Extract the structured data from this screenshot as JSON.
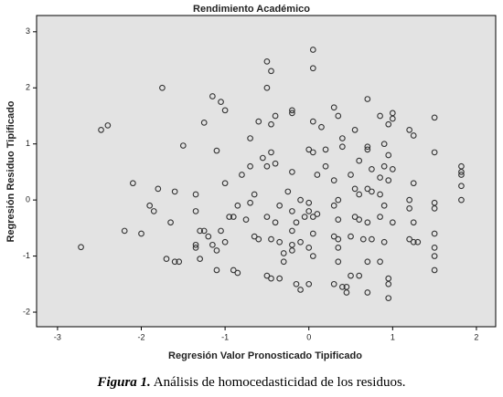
{
  "chart_data": {
    "type": "scatter",
    "title": "Rendimiento Académico",
    "x_label": "Regresión Valor Pronosticado Tipificado",
    "y_label": "Regresión Residuo Tipificado",
    "xlim": [
      -3.25,
      2.23
    ],
    "ylim": [
      -2.26,
      3.29
    ],
    "xticks": [
      -3,
      -2,
      -1,
      0,
      1,
      2
    ],
    "yticks": [
      -2,
      -1,
      0,
      1,
      2,
      3
    ],
    "series": [
      {
        "color": "#333333",
        "x": [
          -2.72,
          -2.48,
          -2.4,
          -2.1,
          -1.9,
          -1.85,
          -2.0,
          -2.2,
          -1.75,
          -1.8,
          -1.6,
          -1.65,
          -1.7,
          -1.55,
          -1.6,
          -1.5,
          -1.35,
          -1.35,
          -1.3,
          -1.35,
          -1.35,
          -1.25,
          -1.3,
          -1.25,
          -1.2,
          -1.15,
          -1.1,
          -1.15,
          -1.05,
          -1.0,
          -1.1,
          -1.05,
          -1.0,
          -0.95,
          -0.9,
          -1.0,
          -1.1,
          -0.9,
          -0.85,
          -0.85,
          -0.8,
          -0.75,
          -0.7,
          -0.65,
          -0.6,
          -0.7,
          -0.6,
          -0.7,
          -0.65,
          -0.55,
          -0.5,
          -0.5,
          -0.45,
          -0.4,
          -0.45,
          -0.4,
          -0.35,
          -0.4,
          -0.45,
          -0.35,
          -0.3,
          -0.45,
          -0.35,
          -0.5,
          -0.3,
          -0.2,
          -0.5,
          -0.45,
          -0.5,
          -0.2,
          -0.2,
          -0.25,
          -0.2,
          -0.1,
          -0.2,
          -0.15,
          -0.2,
          -0.1,
          -0.2,
          -0.15,
          -0.1,
          -0.05,
          0.0,
          0.05,
          0.05,
          0.05,
          0.0,
          0.05,
          0.1,
          0.0,
          0.05,
          0.1,
          0.05,
          0.0,
          0.05,
          0.0,
          0.15,
          0.2,
          0.2,
          0.3,
          0.4,
          0.3,
          0.35,
          0.4,
          0.4,
          0.3,
          0.35,
          0.3,
          0.35,
          0.3,
          0.35,
          0.35,
          0.35,
          0.45,
          0.45,
          0.55,
          0.6,
          0.5,
          0.55,
          0.6,
          0.55,
          0.6,
          0.5,
          0.5,
          0.6,
          0.7,
          0.7,
          0.7,
          0.75,
          0.7,
          0.75,
          0.7,
          0.75,
          0.65,
          0.7,
          0.7,
          0.85,
          0.9,
          0.9,
          0.85,
          0.95,
          0.85,
          0.9,
          0.85,
          0.9,
          0.85,
          0.95,
          0.95,
          0.95,
          1.0,
          1.0,
          1.0,
          0.95,
          0.95,
          1.0,
          1.2,
          1.25,
          1.25,
          1.2,
          1.2,
          1.25,
          1.2,
          1.3,
          1.25,
          1.5,
          1.5,
          1.5,
          1.5,
          1.5,
          1.5,
          1.5,
          1.5,
          1.82,
          1.82,
          1.82,
          1.82,
          1.82
        ],
        "y": [
          -0.84,
          1.25,
          1.33,
          0.3,
          -0.1,
          -0.2,
          -0.6,
          -0.55,
          2.0,
          0.2,
          0.15,
          -0.4,
          -1.05,
          -1.1,
          -1.1,
          0.97,
          0.1,
          -0.2,
          -0.55,
          -0.8,
          -0.85,
          -0.55,
          -1.05,
          1.38,
          -0.65,
          -0.8,
          -0.9,
          1.85,
          1.75,
          1.6,
          0.88,
          -0.55,
          -0.75,
          -0.3,
          -0.3,
          0.3,
          -1.25,
          -1.25,
          -1.3,
          -0.1,
          0.45,
          -0.35,
          0.6,
          -0.65,
          -0.7,
          1.1,
          1.4,
          -0.05,
          0.1,
          0.75,
          0.6,
          -0.3,
          1.35,
          1.5,
          0.85,
          0.65,
          -0.1,
          -0.4,
          -0.7,
          -0.75,
          -0.95,
          -1.4,
          -1.4,
          -1.35,
          -1.1,
          -0.9,
          2.47,
          2.3,
          2.0,
          1.6,
          1.55,
          0.15,
          0.5,
          0.0,
          -0.2,
          -0.4,
          -0.55,
          -0.75,
          -0.8,
          -1.5,
          -1.6,
          -0.3,
          -0.05,
          2.68,
          2.35,
          1.4,
          0.9,
          0.85,
          0.45,
          -0.2,
          -0.3,
          -0.25,
          -0.6,
          -0.85,
          -1.0,
          -1.5,
          1.3,
          0.9,
          0.6,
          -1.5,
          -1.55,
          1.65,
          1.5,
          1.1,
          0.95,
          0.35,
          0.0,
          -0.1,
          -0.35,
          -0.65,
          -0.7,
          -0.85,
          -1.1,
          -1.55,
          -1.65,
          1.25,
          0.7,
          0.45,
          0.2,
          0.1,
          -0.3,
          -0.35,
          -0.65,
          -1.35,
          -1.35,
          1.8,
          0.95,
          0.9,
          0.55,
          0.2,
          0.15,
          -0.4,
          -0.7,
          -0.7,
          -1.1,
          -1.65,
          1.5,
          1.0,
          0.6,
          0.4,
          0.35,
          0.1,
          -0.1,
          -0.3,
          -0.75,
          -1.1,
          -1.4,
          -1.5,
          -1.75,
          1.55,
          1.45,
          0.55,
          0.8,
          1.35,
          -0.4,
          1.25,
          1.15,
          0.3,
          0.0,
          -0.15,
          -0.4,
          -0.7,
          -0.75,
          -0.75,
          1.47,
          0.85,
          -0.05,
          -0.15,
          -0.6,
          -0.85,
          -1.0,
          -1.25,
          0.6,
          0.5,
          0.45,
          0.25,
          0.0
        ]
      }
    ]
  },
  "caption": {
    "label": "Figura 1.",
    "text": "Análisis de homocedasticidad de los residuos."
  }
}
